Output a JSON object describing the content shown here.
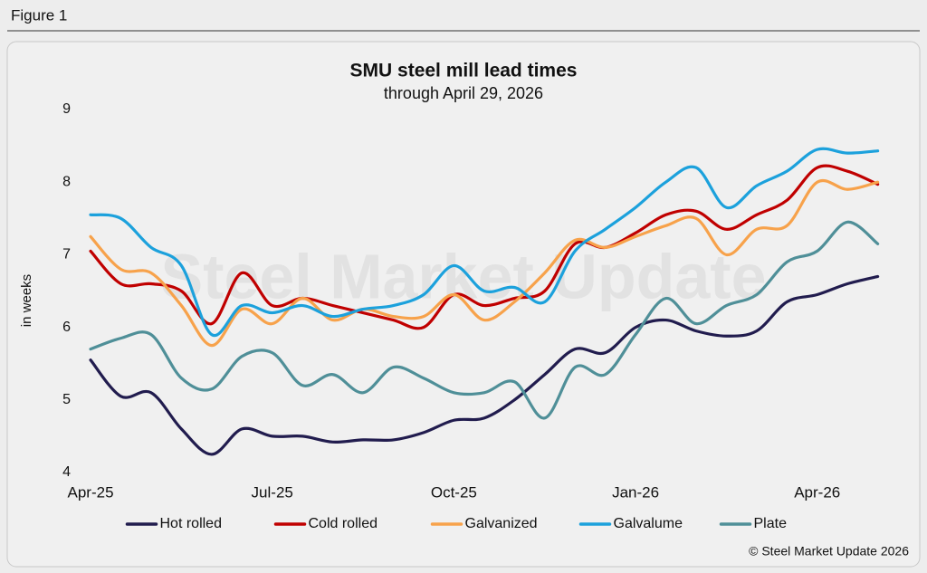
{
  "figure_label": "Figure 1",
  "chart_data": {
    "type": "line",
    "title": "SMU steel mill lead times",
    "subtitle": "through April 29, 2026",
    "y_label": "in weeks",
    "watermark": "Steel Market Update",
    "source": "© Steel Market Update 2026",
    "x": [
      0,
      0.5,
      1,
      1.5,
      2,
      2.5,
      3,
      3.5,
      4,
      4.5,
      5,
      5.5,
      6,
      6.5,
      7,
      7.5,
      8,
      8.5,
      9,
      9.5,
      10,
      10.5,
      11,
      11.5,
      12,
      12.5,
      13
    ],
    "xlim": [
      -0.15,
      13.2
    ],
    "xticks": [
      {
        "value": 0,
        "label": "Apr-25"
      },
      {
        "value": 3,
        "label": "Jul-25"
      },
      {
        "value": 6,
        "label": "Oct-25"
      },
      {
        "value": 9,
        "label": "Jan-26"
      },
      {
        "value": 12,
        "label": "Apr-26"
      }
    ],
    "ylim": [
      4,
      9
    ],
    "yticks": [
      4,
      5,
      6,
      7,
      8,
      9
    ],
    "grid": false,
    "legend": "bottom",
    "series": [
      {
        "name": "Hot rolled",
        "color": "#211c4e",
        "values": [
          5.55,
          5.05,
          5.1,
          4.6,
          4.25,
          4.6,
          4.5,
          4.5,
          4.42,
          4.45,
          4.45,
          4.55,
          4.72,
          4.75,
          5.0,
          5.35,
          5.7,
          5.65,
          6.0,
          6.1,
          5.95,
          5.88,
          5.95,
          6.35,
          6.45,
          6.6,
          6.7
        ]
      },
      {
        "name": "Cold rolled",
        "color": "#c00000",
        "values": [
          7.05,
          6.6,
          6.6,
          6.5,
          6.05,
          6.75,
          6.3,
          6.4,
          6.3,
          6.2,
          6.1,
          6.0,
          6.45,
          6.3,
          6.4,
          6.5,
          7.15,
          7.1,
          7.3,
          7.55,
          7.6,
          7.35,
          7.55,
          7.75,
          8.2,
          8.15,
          7.97
        ]
      },
      {
        "name": "Galvanized",
        "color": "#f7a24b",
        "values": [
          7.25,
          6.8,
          6.75,
          6.3,
          5.75,
          6.25,
          6.05,
          6.4,
          6.1,
          6.25,
          6.15,
          6.15,
          6.45,
          6.1,
          6.35,
          6.75,
          7.2,
          7.1,
          7.25,
          7.4,
          7.5,
          7.0,
          7.35,
          7.4,
          8.0,
          7.9,
          8.0
        ]
      },
      {
        "name": "Galvalume",
        "color": "#1ca1dc",
        "values": [
          7.55,
          7.5,
          7.1,
          6.85,
          5.9,
          6.3,
          6.2,
          6.3,
          6.15,
          6.25,
          6.3,
          6.45,
          6.85,
          6.5,
          6.55,
          6.35,
          7.05,
          7.35,
          7.65,
          8.0,
          8.2,
          7.65,
          7.95,
          8.15,
          8.45,
          8.4,
          8.43
        ]
      },
      {
        "name": "Plate",
        "color": "#4f8f98",
        "values": [
          5.7,
          5.85,
          5.9,
          5.3,
          5.15,
          5.6,
          5.65,
          5.2,
          5.35,
          5.1,
          5.45,
          5.3,
          5.1,
          5.1,
          5.25,
          4.75,
          5.45,
          5.35,
          5.9,
          6.4,
          6.05,
          6.3,
          6.45,
          6.9,
          7.05,
          7.45,
          7.15
        ]
      }
    ]
  }
}
